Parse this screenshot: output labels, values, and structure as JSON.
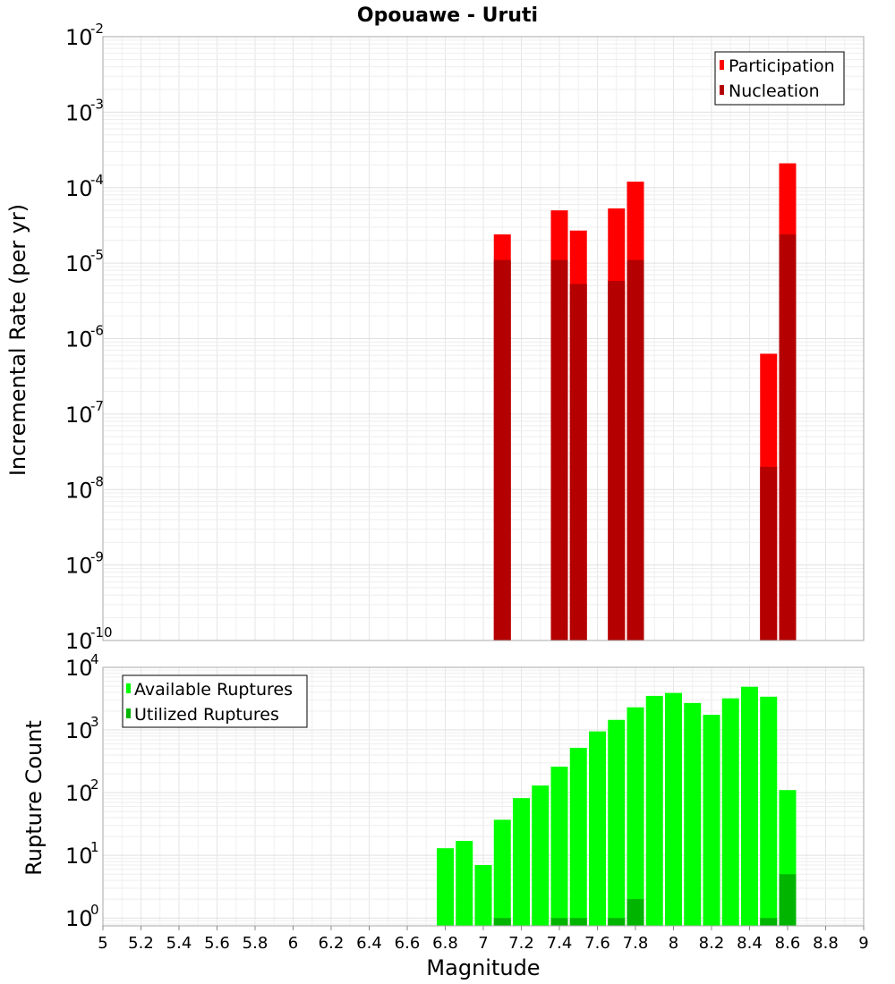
{
  "chart_data": [
    {
      "type": "bar",
      "scale": "log",
      "title": "Opouawe - Uruti",
      "xlabel": "",
      "ylabel": "Incremental Rate (per yr)",
      "xlim": [
        5,
        9
      ],
      "ylim": [
        1e-10,
        0.01
      ],
      "y_tick_exponents": [
        -10,
        -9,
        -8,
        -7,
        -6,
        -5,
        -4,
        -3,
        -2
      ],
      "legend": "top-right",
      "grid": true,
      "x": [
        7.1,
        7.4,
        7.5,
        7.7,
        7.8,
        8.5,
        8.6
      ],
      "series": [
        {
          "name": "Participation",
          "color": "#ff0000",
          "values": [
            2.4e-05,
            5e-05,
            2.7e-05,
            5.3e-05,
            0.00012,
            6.3e-07,
            0.00021
          ]
        },
        {
          "name": "Nucleation",
          "color": "#b40000",
          "values": [
            1.1e-05,
            1.1e-05,
            5.3e-06,
            5.8e-06,
            1.1e-05,
            2e-08,
            2.4e-05
          ]
        }
      ]
    },
    {
      "type": "bar",
      "scale": "log",
      "title": "",
      "xlabel": "Magnitude",
      "ylabel": "Rupture Count",
      "xlim": [
        5,
        9
      ],
      "ylim": [
        0.75,
        10000.0
      ],
      "y_tick_exponents": [
        0,
        1,
        2,
        3,
        4
      ],
      "x_ticks": [
        "5",
        "5.2",
        "5.4",
        "5.6",
        "5.8",
        "6",
        "6.2",
        "6.4",
        "6.6",
        "6.8",
        "7",
        "7.2",
        "7.4",
        "7.6",
        "7.8",
        "8",
        "8.2",
        "8.4",
        "8.6",
        "8.8",
        "9"
      ],
      "legend": "top-left",
      "grid": true,
      "x": [
        6.8,
        6.9,
        7.0,
        7.1,
        7.2,
        7.3,
        7.4,
        7.5,
        7.6,
        7.7,
        7.8,
        7.9,
        8.0,
        8.1,
        8.2,
        8.3,
        8.4,
        8.5,
        8.6
      ],
      "series": [
        {
          "name": "Available Ruptures",
          "color": "#00ff00",
          "values": [
            13,
            17,
            7,
            37,
            82,
            130,
            260,
            520,
            950,
            1450,
            2300,
            3500,
            3900,
            2700,
            1750,
            3200,
            4900,
            3400,
            110
          ]
        },
        {
          "name": "Utilized Ruptures",
          "color": "#00b400",
          "values": [
            0,
            0,
            0,
            1,
            0,
            0,
            1,
            1,
            0,
            1,
            2,
            0,
            0,
            0,
            0,
            0,
            0,
            1,
            5
          ]
        }
      ]
    }
  ]
}
